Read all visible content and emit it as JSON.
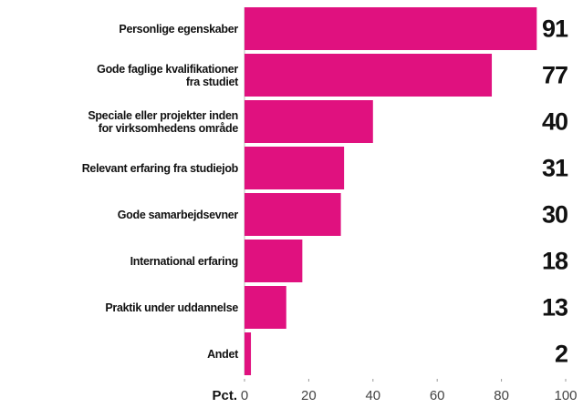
{
  "chart_data": {
    "type": "bar",
    "orientation": "horizontal",
    "categories": [
      "Personlige egenskaber",
      "Gode faglige kvalifikationer\nfra studiet",
      "Speciale eller projekter inden\nfor virksomhedens område",
      "Relevant erfaring fra studiejob",
      "Gode samarbejdsevner",
      "International erfaring",
      "Praktik under uddannelse",
      "Andet"
    ],
    "values": [
      91,
      77,
      40,
      31,
      30,
      18,
      13,
      2
    ],
    "color": "#e0117f",
    "x_label": "Pct.",
    "xlim": [
      0,
      100
    ],
    "xticks": [
      0,
      20,
      40,
      60,
      80,
      100
    ]
  }
}
